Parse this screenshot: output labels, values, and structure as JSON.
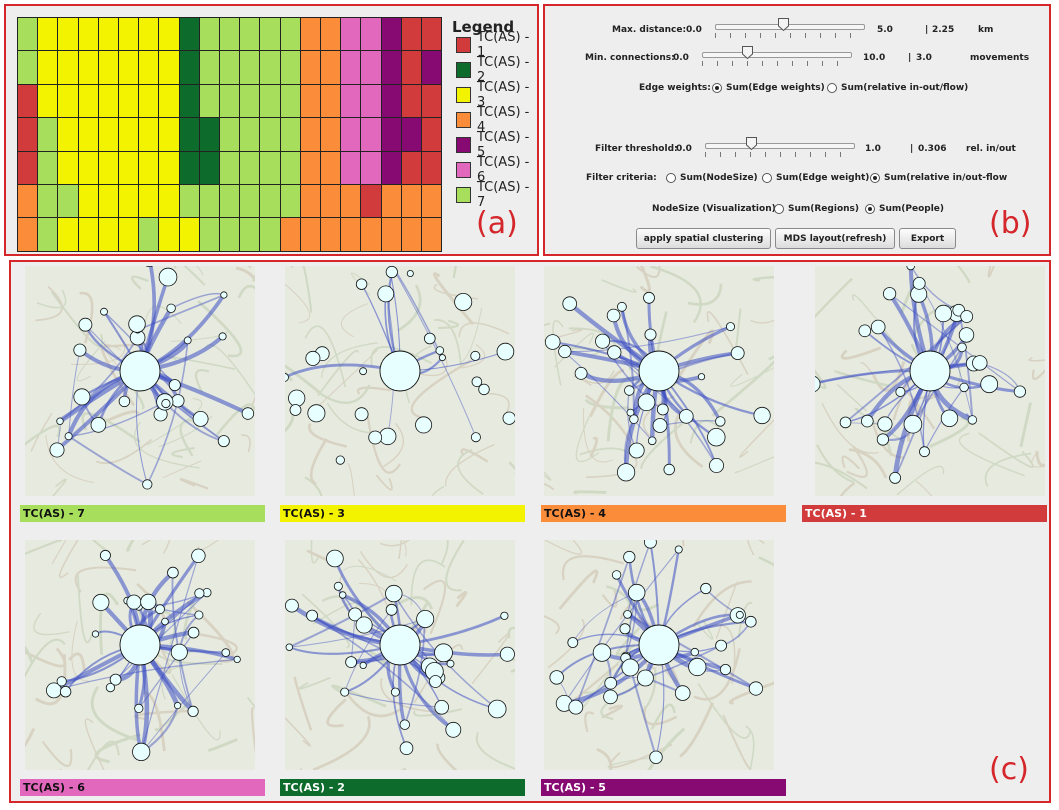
{
  "panel_a": {
    "letter": "(a)",
    "legend_title": "Legend",
    "legend": [
      {
        "label": "TC(AS) - 1",
        "color": "#d13b3b"
      },
      {
        "label": "TC(AS) - 2",
        "color": "#0d6b2c"
      },
      {
        "label": "TC(AS) - 3",
        "color": "#f3f300"
      },
      {
        "label": "TC(AS) - 4",
        "color": "#fb8c3a"
      },
      {
        "label": "TC(AS) - 5",
        "color": "#860a72"
      },
      {
        "label": "TC(AS) - 6",
        "color": "#e168bd"
      },
      {
        "label": "TC(AS) - 7",
        "color": "#a7df5d"
      }
    ],
    "grid_rows": [
      "733333332777774466511",
      "733333332777774466515",
      "133333332777774466511",
      "173333332277774466551",
      "173333332277774466511",
      "477333337777774441444",
      "473333733777744444444"
    ]
  },
  "panel_b": {
    "letter": "(b)",
    "max_distance": {
      "label": "Max. distance:",
      "min": "0.0",
      "max": "5.0",
      "value": "2.25",
      "unit": "km",
      "fraction": 0.45
    },
    "min_connections": {
      "label": "Min. connections:",
      "min": "0.0",
      "max": "10.0",
      "value": "3.0",
      "unit": "movements",
      "fraction": 0.3
    },
    "edge_weights": {
      "label": "Edge weights:",
      "options": [
        {
          "label": "Sum(Edge weights)",
          "selected": true
        },
        {
          "label": "Sum(relative in-out/flow)",
          "selected": false
        }
      ]
    },
    "filter_threshold": {
      "label": "Filter threshold:",
      "min": "0.0",
      "max": "1.0",
      "value": "0.306",
      "unit": "rel. in/out",
      "fraction": 0.306
    },
    "filter_criteria": {
      "label": "Filter criteria:",
      "options": [
        {
          "label": "Sum(NodeSize)",
          "selected": false
        },
        {
          "label": "Sum(Edge weight)",
          "selected": false
        },
        {
          "label": "Sum(relative in/out-flow",
          "selected": true
        }
      ]
    },
    "node_size": {
      "label": "NodeSize (Visualization):",
      "options": [
        {
          "label": "Sum(Regions)",
          "selected": false
        },
        {
          "label": "Sum(People)",
          "selected": true
        }
      ]
    },
    "buttons": {
      "cluster": "apply spatial clustering",
      "mds": "MDS layout(refresh)",
      "export": "Export"
    }
  },
  "panel_c": {
    "letter": "(c)",
    "maps": [
      {
        "caption": "TC(AS) - 7",
        "color": "#a7df5d",
        "text": "#111111"
      },
      {
        "caption": "TC(AS) - 3",
        "color": "#f3f300",
        "text": "#111111"
      },
      {
        "caption": "TC(AS) - 4",
        "color": "#fb8c3a",
        "text": "#111111"
      },
      {
        "caption": "TC(AS) - 1",
        "color": "#d13b3b",
        "text": "#ffffff"
      },
      {
        "caption": "TC(AS) - 6",
        "color": "#e168bd",
        "text": "#111111"
      },
      {
        "caption": "TC(AS) - 2",
        "color": "#0d6b2c",
        "text": "#ffffff"
      },
      {
        "caption": "TC(AS) - 5",
        "color": "#860a72",
        "text": "#ffffff"
      }
    ]
  }
}
